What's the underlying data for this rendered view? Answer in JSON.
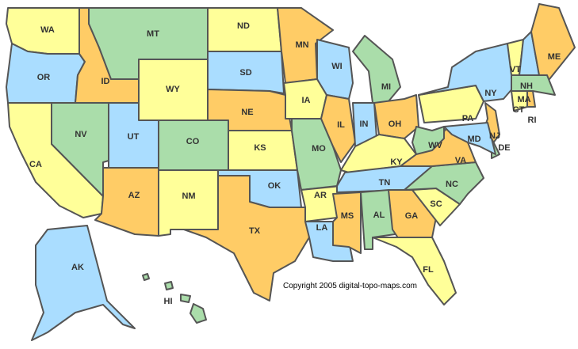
{
  "palette": {
    "yellow": "#ffff99",
    "orange": "#ffcc66",
    "green": "#aaddaa",
    "blue": "#aaddff",
    "border": "#555555"
  },
  "copyright": "Copyright 2005 digital-topo-maps.com",
  "states": [
    {
      "code": "WA",
      "color": "yellow"
    },
    {
      "code": "OR",
      "color": "blue"
    },
    {
      "code": "CA",
      "color": "yellow"
    },
    {
      "code": "NV",
      "color": "green"
    },
    {
      "code": "ID",
      "color": "orange"
    },
    {
      "code": "MT",
      "color": "green"
    },
    {
      "code": "WY",
      "color": "yellow"
    },
    {
      "code": "UT",
      "color": "blue"
    },
    {
      "code": "CO",
      "color": "green"
    },
    {
      "code": "AZ",
      "color": "orange"
    },
    {
      "code": "NM",
      "color": "yellow"
    },
    {
      "code": "ND",
      "color": "yellow"
    },
    {
      "code": "SD",
      "color": "blue"
    },
    {
      "code": "NE",
      "color": "orange"
    },
    {
      "code": "KS",
      "color": "yellow"
    },
    {
      "code": "OK",
      "color": "blue"
    },
    {
      "code": "TX",
      "color": "orange"
    },
    {
      "code": "MN",
      "color": "orange"
    },
    {
      "code": "IA",
      "color": "yellow"
    },
    {
      "code": "MO",
      "color": "green"
    },
    {
      "code": "AR",
      "color": "yellow"
    },
    {
      "code": "LA",
      "color": "blue"
    },
    {
      "code": "WI",
      "color": "blue"
    },
    {
      "code": "IL",
      "color": "orange"
    },
    {
      "code": "MI",
      "color": "green"
    },
    {
      "code": "IN",
      "color": "blue"
    },
    {
      "code": "OH",
      "color": "orange"
    },
    {
      "code": "KY",
      "color": "yellow"
    },
    {
      "code": "TN",
      "color": "blue"
    },
    {
      "code": "MS",
      "color": "orange"
    },
    {
      "code": "AL",
      "color": "green"
    },
    {
      "code": "GA",
      "color": "orange"
    },
    {
      "code": "FL",
      "color": "yellow"
    },
    {
      "code": "SC",
      "color": "yellow"
    },
    {
      "code": "NC",
      "color": "green"
    },
    {
      "code": "VA",
      "color": "orange"
    },
    {
      "code": "WV",
      "color": "green"
    },
    {
      "code": "PA",
      "color": "yellow"
    },
    {
      "code": "NY",
      "color": "blue"
    },
    {
      "code": "VT",
      "color": "yellow"
    },
    {
      "code": "NH",
      "color": "blue"
    },
    {
      "code": "ME",
      "color": "orange"
    },
    {
      "code": "MA",
      "color": "green"
    },
    {
      "code": "CT",
      "color": "yellow"
    },
    {
      "code": "RI",
      "color": "orange"
    },
    {
      "code": "NJ",
      "color": "orange"
    },
    {
      "code": "DE",
      "color": "green"
    },
    {
      "code": "MD",
      "color": "blue"
    },
    {
      "code": "AK",
      "color": "blue"
    },
    {
      "code": "HI",
      "color": "green"
    }
  ]
}
